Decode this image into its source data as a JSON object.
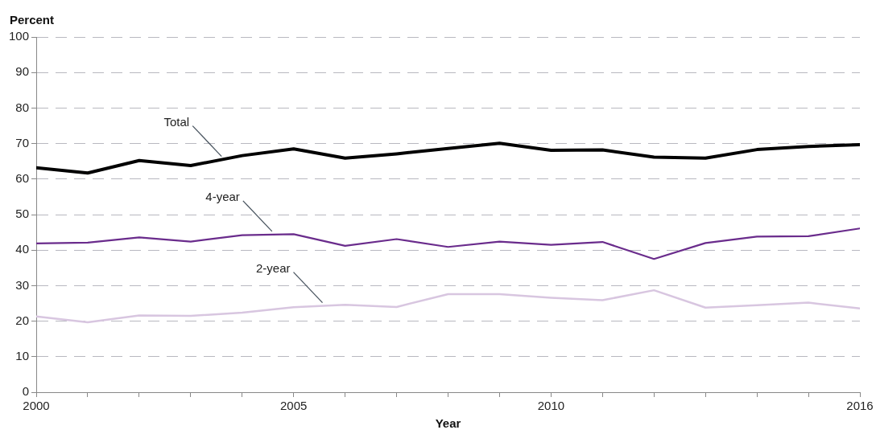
{
  "chart_data": {
    "type": "line",
    "ylabel": "Percent",
    "xlabel": "Year",
    "x": [
      2000,
      2001,
      2002,
      2003,
      2004,
      2005,
      2006,
      2007,
      2008,
      2009,
      2010,
      2011,
      2012,
      2013,
      2014,
      2015,
      2016
    ],
    "series": [
      {
        "name": "Total",
        "color": "#000000",
        "values": [
          63.2,
          61.7,
          65.2,
          63.8,
          66.6,
          68.5,
          65.9,
          67.1,
          68.6,
          70.1,
          68.1,
          68.2,
          66.2,
          65.9,
          68.3,
          69.2,
          69.7
        ]
      },
      {
        "name": "4-year",
        "color": "#6a2c8c",
        "values": [
          41.9,
          42.1,
          43.6,
          42.4,
          44.2,
          44.5,
          41.2,
          43.1,
          40.9,
          42.4,
          41.5,
          42.3,
          37.5,
          42.0,
          43.8,
          43.9,
          46.1
        ]
      },
      {
        "name": "2-year",
        "color": "#d8c6e0",
        "values": [
          21.3,
          19.7,
          21.6,
          21.5,
          22.4,
          23.9,
          24.6,
          24.0,
          27.6,
          27.6,
          26.6,
          25.9,
          28.7,
          23.8,
          24.5,
          25.2,
          23.6
        ]
      }
    ],
    "xlim": [
      2000,
      2016
    ],
    "xticks": [
      2000,
      {
        "value": 2001,
        "label": null
      },
      {
        "value": 2002,
        "label": null
      },
      {
        "value": 2003,
        "label": null
      },
      {
        "value": 2004,
        "label": null
      },
      2005,
      {
        "value": 2006,
        "label": null
      },
      {
        "value": 2007,
        "label": null
      },
      {
        "value": 2008,
        "label": null
      },
      {
        "value": 2009,
        "label": null
      },
      2010,
      {
        "value": 2011,
        "label": null
      },
      {
        "value": 2012,
        "label": null
      },
      {
        "value": 2013,
        "label": null
      },
      {
        "value": 2014,
        "label": null
      },
      {
        "value": 2015,
        "label": null
      },
      2016
    ],
    "ylim": [
      0,
      100
    ],
    "yticks": [
      0,
      10,
      20,
      30,
      40,
      50,
      60,
      70,
      80,
      90,
      100
    ],
    "grid": "y",
    "legend": false,
    "marker": "none",
    "line_style": "solid"
  }
}
